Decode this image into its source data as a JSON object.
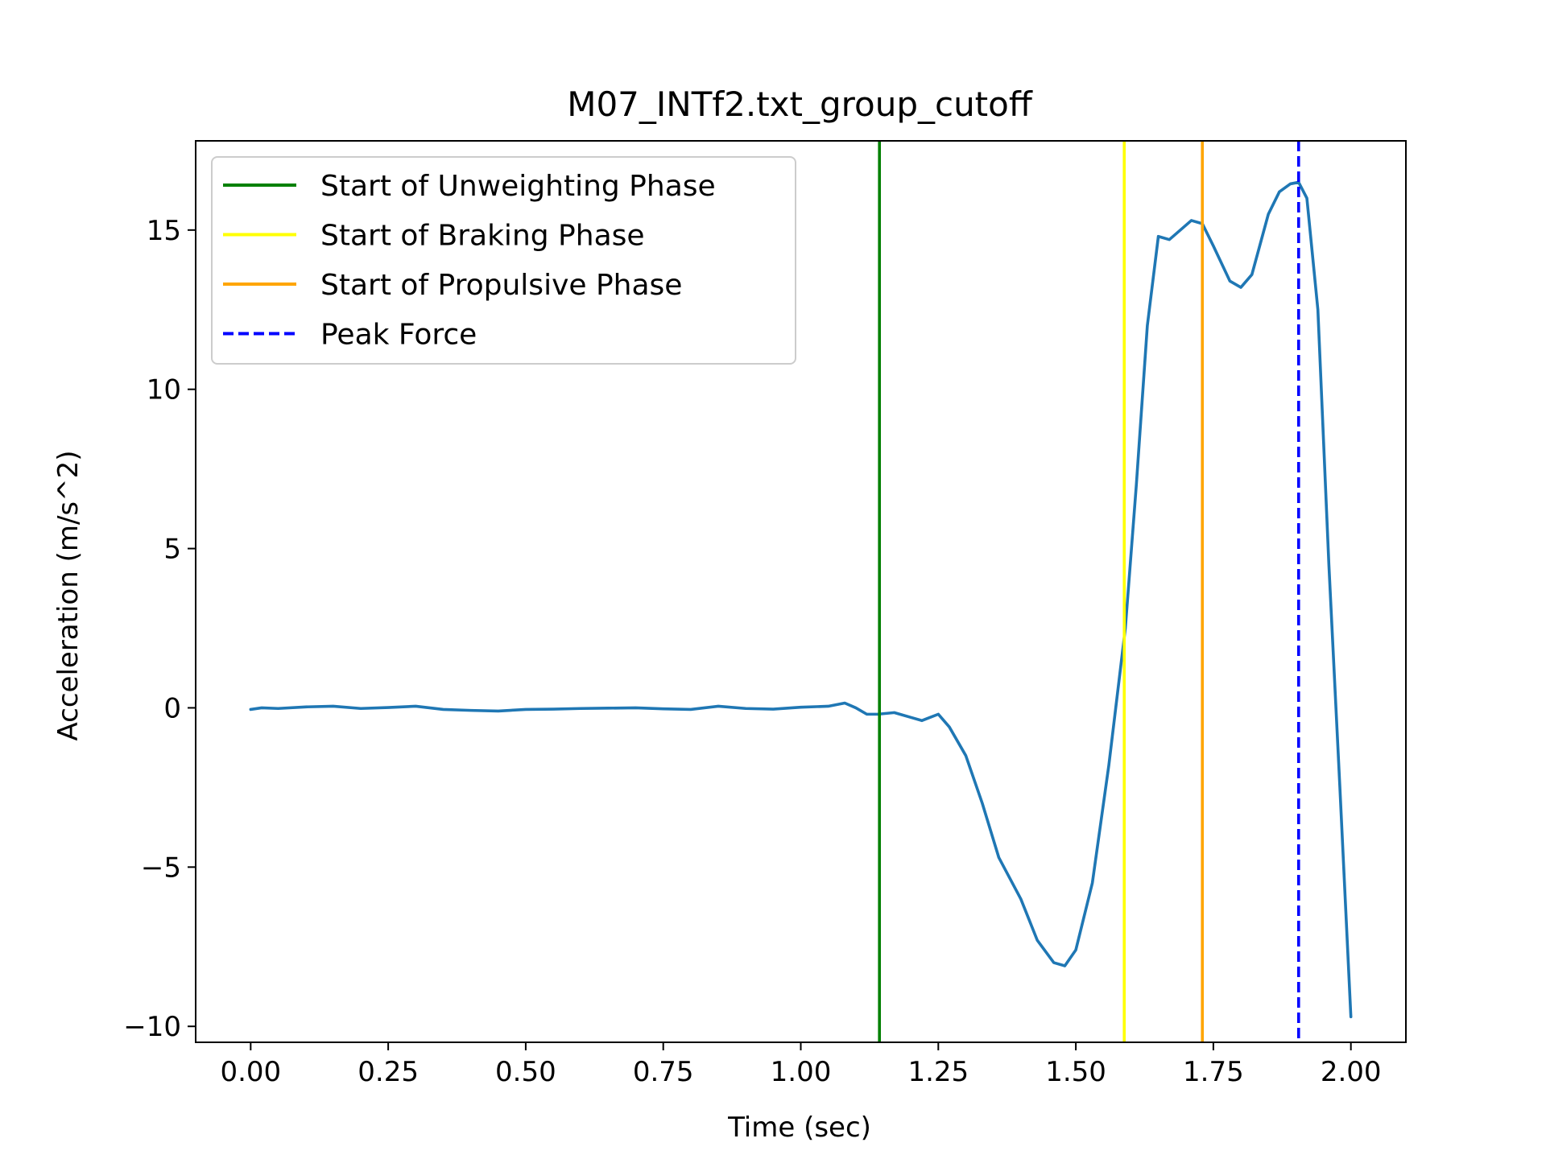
{
  "chart_data": {
    "type": "line",
    "title": "M07_INTf2.txt_group_cutoff",
    "xlabel": "Time (sec)",
    "ylabel": "Acceleration (m/s^2)",
    "xlim": [
      -0.1,
      2.1
    ],
    "ylim": [
      -10.5,
      17.8
    ],
    "xticks": [
      0.0,
      0.25,
      0.5,
      0.75,
      1.0,
      1.25,
      1.5,
      1.75,
      2.0
    ],
    "xtick_labels": [
      "0.00",
      "0.25",
      "0.50",
      "0.75",
      "1.00",
      "1.25",
      "1.50",
      "1.75",
      "2.00"
    ],
    "yticks": [
      -10,
      -5,
      0,
      5,
      10,
      15
    ],
    "ytick_labels": [
      "−10",
      "−5",
      "0",
      "5",
      "10",
      "15"
    ],
    "grid": false,
    "legend_position": "top-left",
    "series": [
      {
        "color": "#1f77b4",
        "x": [
          0.0,
          0.02,
          0.05,
          0.1,
          0.15,
          0.2,
          0.25,
          0.3,
          0.35,
          0.4,
          0.45,
          0.5,
          0.55,
          0.6,
          0.65,
          0.7,
          0.75,
          0.8,
          0.85,
          0.9,
          0.95,
          1.0,
          1.05,
          1.08,
          1.1,
          1.12,
          1.14,
          1.17,
          1.2,
          1.22,
          1.25,
          1.27,
          1.3,
          1.33,
          1.36,
          1.4,
          1.43,
          1.46,
          1.48,
          1.5,
          1.53,
          1.56,
          1.59,
          1.61,
          1.63,
          1.65,
          1.67,
          1.69,
          1.71,
          1.73,
          1.75,
          1.78,
          1.8,
          1.82,
          1.85,
          1.87,
          1.89,
          1.905,
          1.92,
          1.94,
          1.96,
          1.98,
          2.0
        ],
        "y": [
          -0.05,
          0.0,
          -0.02,
          0.03,
          0.05,
          -0.02,
          0.01,
          0.05,
          -0.05,
          -0.08,
          -0.1,
          -0.05,
          -0.04,
          -0.02,
          -0.01,
          0.0,
          -0.03,
          -0.05,
          0.05,
          -0.02,
          -0.04,
          0.02,
          0.05,
          0.15,
          0.0,
          -0.2,
          -0.2,
          -0.15,
          -0.3,
          -0.4,
          -0.2,
          -0.6,
          -1.5,
          -3.0,
          -4.7,
          -6.0,
          -7.3,
          -8.0,
          -8.1,
          -7.6,
          -5.5,
          -1.8,
          2.5,
          7.0,
          12.0,
          14.8,
          14.7,
          15.0,
          15.3,
          15.2,
          14.5,
          13.4,
          13.2,
          13.6,
          15.5,
          16.2,
          16.45,
          16.5,
          16.0,
          12.5,
          4.5,
          -2.5,
          -9.7
        ]
      }
    ],
    "vlines": [
      {
        "x": 1.143,
        "color": "#008000",
        "style": "solid",
        "label": "Start of Unweighting Phase"
      },
      {
        "x": 1.588,
        "color": "#ffff00",
        "style": "solid",
        "label": "Start of Braking Phase"
      },
      {
        "x": 1.73,
        "color": "#ffa500",
        "style": "solid",
        "label": "Start of Propulsive Phase"
      },
      {
        "x": 1.905,
        "color": "#0000ff",
        "style": "dashed",
        "label": "Peak Force"
      }
    ]
  }
}
